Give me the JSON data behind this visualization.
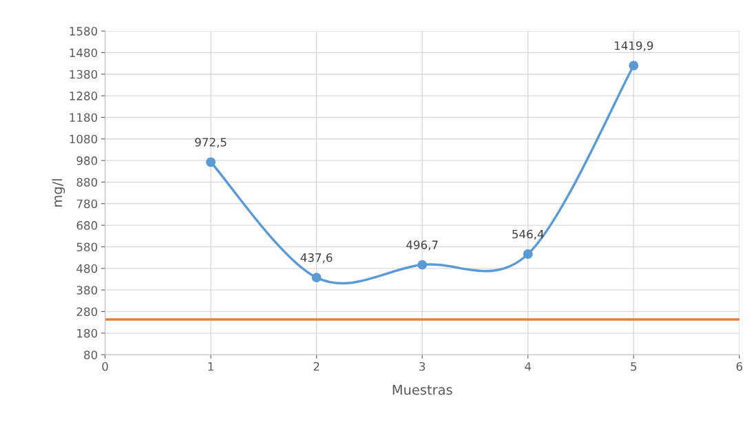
{
  "chart_data": {
    "type": "line",
    "xlabel": "Muestras",
    "ylabel": "mg/l",
    "x": [
      1,
      2,
      3,
      4,
      5
    ],
    "series": [
      {
        "color": "#5b9bd5",
        "values": [
          972.5,
          437.6,
          496.7,
          546.4,
          1419.9
        ],
        "value_labels": [
          "972,5",
          "437,6",
          "496,7",
          "546,4",
          "1419,9"
        ]
      }
    ],
    "marker": "circle",
    "line_style": "solid",
    "grid": true,
    "xlim": [
      0,
      6
    ],
    "xticks": [
      0,
      1,
      2,
      3,
      4,
      5,
      6
    ],
    "ylim": [
      80,
      1580
    ],
    "yticks": [
      80,
      180,
      280,
      380,
      480,
      580,
      680,
      780,
      880,
      980,
      1080,
      1180,
      1280,
      1380,
      1480,
      1580
    ],
    "ref_lines": [
      {
        "axis": "y",
        "value": 243,
        "color": "#ed7d31",
        "line_style": "solid"
      }
    ]
  }
}
